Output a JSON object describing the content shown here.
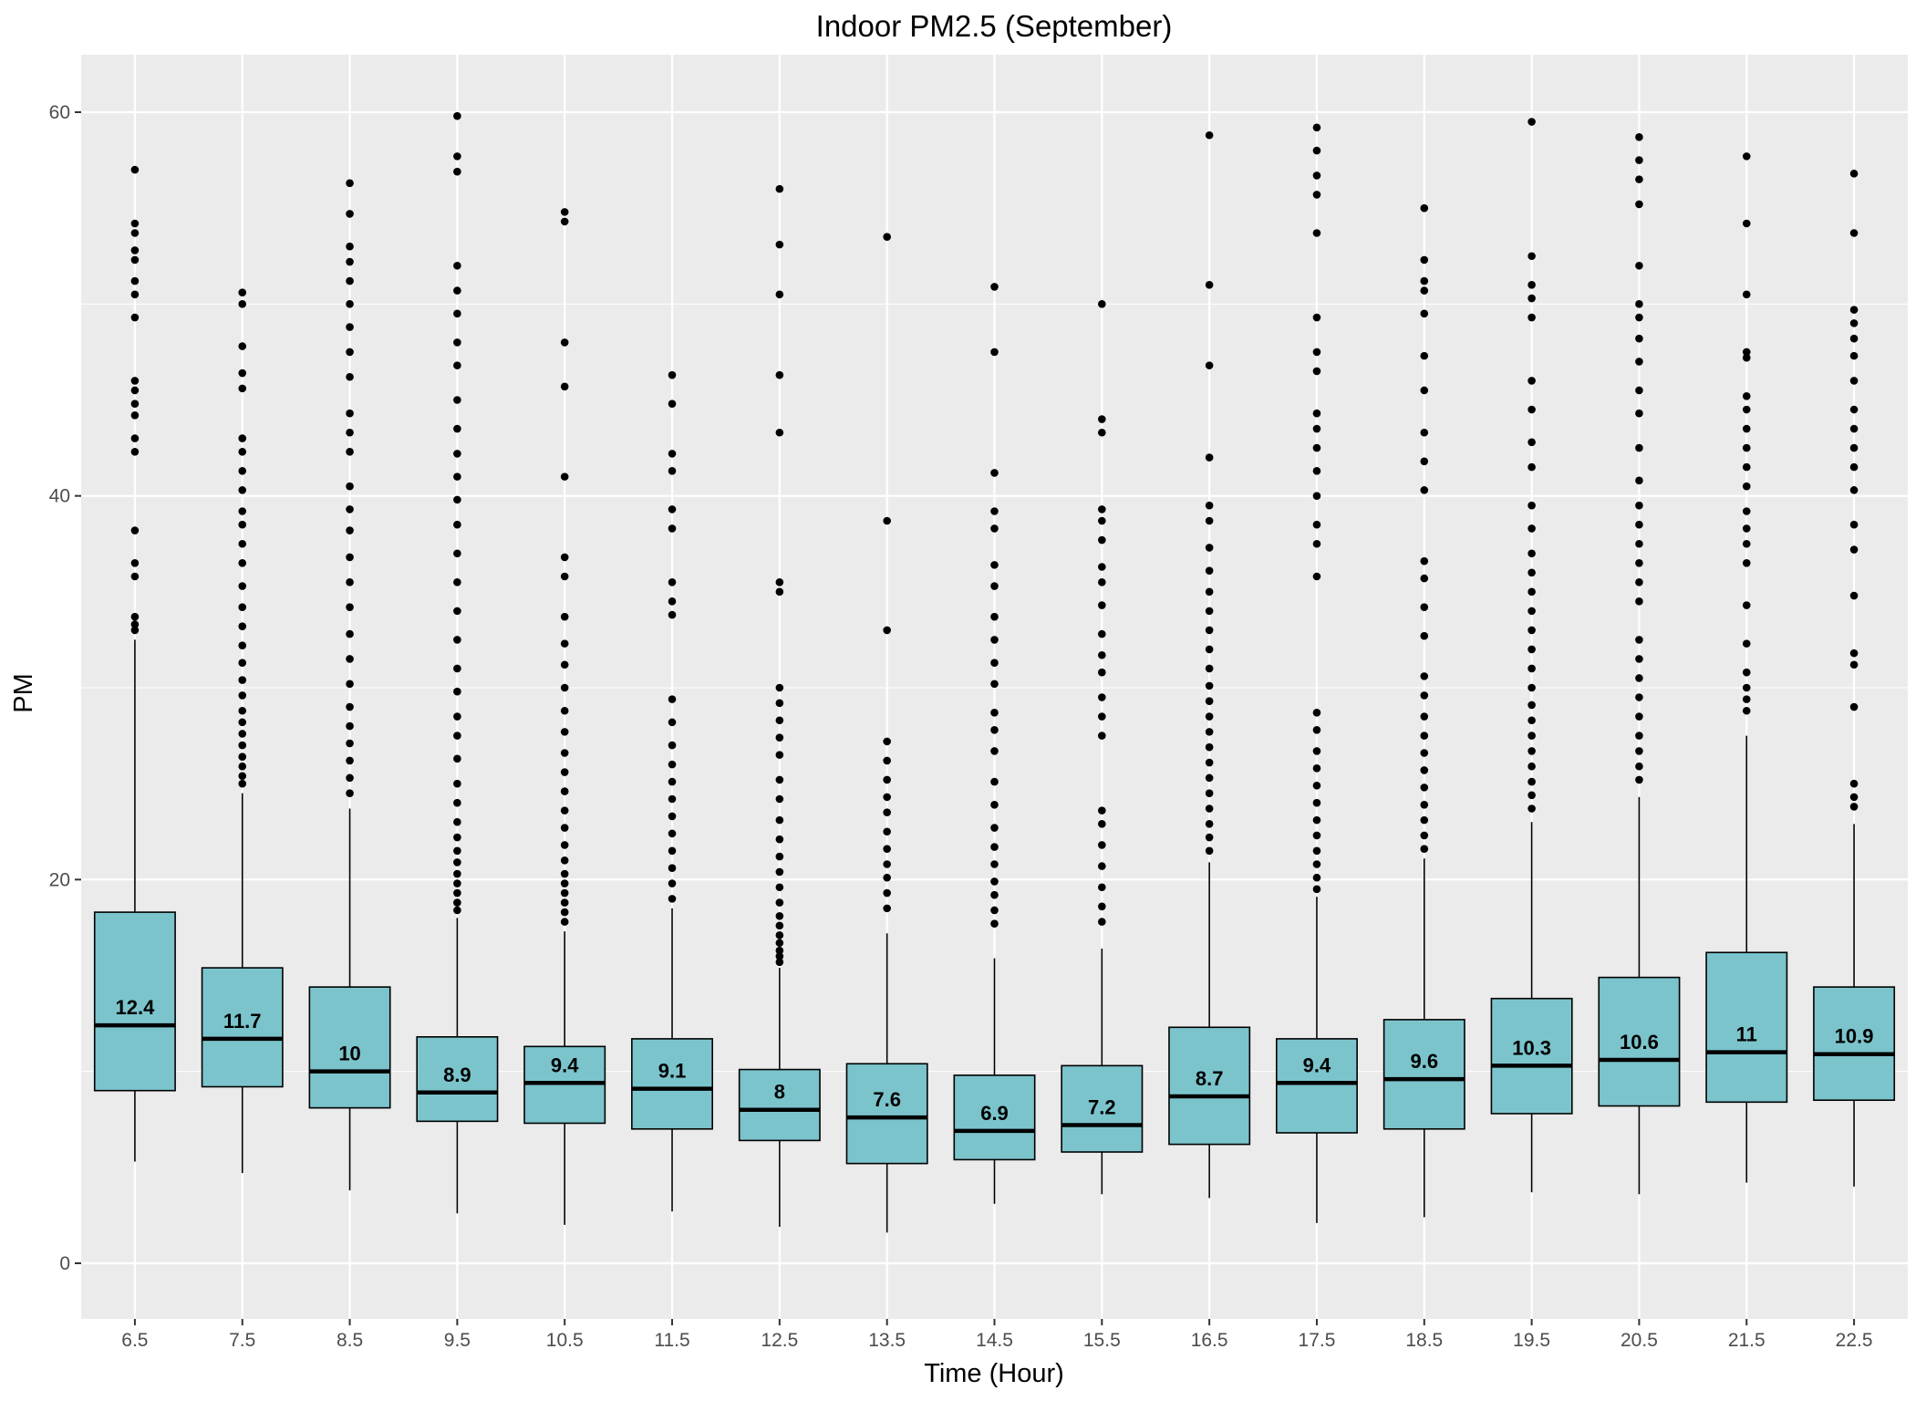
{
  "chart_data": {
    "type": "boxplot",
    "title": "Indoor PM2.5 (September)",
    "xlabel": "Time (Hour)",
    "ylabel": "PM",
    "ylim": [
      -3,
      63
    ],
    "yticks": [
      0,
      20,
      40,
      60
    ],
    "grid": true,
    "legend": "none",
    "categories": [
      "6.5",
      "7.5",
      "8.5",
      "9.5",
      "10.5",
      "11.5",
      "12.5",
      "13.5",
      "14.5",
      "15.5",
      "16.5",
      "17.5",
      "18.5",
      "19.5",
      "20.5",
      "21.5",
      "22.5"
    ],
    "colors": {
      "panel": "#ebebeb",
      "grid": "#ffffff",
      "box_fill": "#7bc4cc",
      "stroke": "#000000"
    },
    "boxes": [
      {
        "category": "6.5",
        "median_label": "12.4",
        "whisker_low": 5.3,
        "q1": 9.0,
        "median": 12.4,
        "q3": 18.3,
        "whisker_high": 32.5,
        "outliers": [
          33.0,
          33.3,
          33.7,
          35.8,
          36.5,
          38.2,
          42.3,
          43.0,
          44.2,
          44.8,
          45.5,
          46.0,
          49.3,
          50.5,
          51.2,
          52.3,
          52.8,
          53.7,
          54.2,
          57.0
        ]
      },
      {
        "category": "7.5",
        "median_label": "11.7",
        "whisker_low": 4.7,
        "q1": 9.2,
        "median": 11.7,
        "q3": 15.4,
        "whisker_high": 24.5,
        "outliers": [
          25.0,
          25.4,
          25.9,
          26.4,
          27.0,
          27.6,
          28.2,
          28.8,
          29.6,
          30.4,
          31.3,
          32.2,
          33.2,
          34.2,
          35.3,
          36.5,
          37.5,
          38.5,
          39.2,
          40.3,
          41.3,
          42.3,
          43.0,
          45.6,
          46.4,
          47.8,
          50.0,
          50.6
        ]
      },
      {
        "category": "8.5",
        "median_label": "10",
        "whisker_low": 3.8,
        "q1": 8.1,
        "median": 10.0,
        "q3": 14.4,
        "whisker_high": 23.7,
        "outliers": [
          24.5,
          25.3,
          26.2,
          27.1,
          28.0,
          29.0,
          30.2,
          31.5,
          32.8,
          34.2,
          35.5,
          36.8,
          38.2,
          39.3,
          40.5,
          42.3,
          43.3,
          44.3,
          46.2,
          47.5,
          48.8,
          50.0,
          51.2,
          52.2,
          53.0,
          54.7,
          56.3
        ]
      },
      {
        "category": "9.5",
        "median_label": "8.9",
        "whisker_low": 2.6,
        "q1": 7.4,
        "median": 8.9,
        "q3": 11.8,
        "whisker_high": 18.0,
        "outliers": [
          18.4,
          18.8,
          19.3,
          19.8,
          20.3,
          20.9,
          21.5,
          22.2,
          23.0,
          24.0,
          25.0,
          26.3,
          27.5,
          28.5,
          29.8,
          31.0,
          32.5,
          34.0,
          35.5,
          37.0,
          38.5,
          39.8,
          41.0,
          42.2,
          43.5,
          45.0,
          46.8,
          48.0,
          49.5,
          50.7,
          52.0,
          56.9,
          57.7,
          59.8
        ]
      },
      {
        "category": "10.5",
        "median_label": "9.4",
        "whisker_low": 2.0,
        "q1": 7.3,
        "median": 9.4,
        "q3": 11.3,
        "whisker_high": 17.3,
        "outliers": [
          17.8,
          18.3,
          18.8,
          19.3,
          19.8,
          20.3,
          21.0,
          21.8,
          22.7,
          23.6,
          24.6,
          25.6,
          26.6,
          27.7,
          28.8,
          30.0,
          31.2,
          32.3,
          33.7,
          35.8,
          36.8,
          41.0,
          45.7,
          48.0,
          54.3,
          54.8
        ]
      },
      {
        "category": "11.5",
        "median_label": "9.1",
        "whisker_low": 2.7,
        "q1": 7.0,
        "median": 9.1,
        "q3": 11.7,
        "whisker_high": 18.5,
        "outliers": [
          19.0,
          19.8,
          20.6,
          21.5,
          22.4,
          23.3,
          24.2,
          25.1,
          26.0,
          27.0,
          28.2,
          29.4,
          33.8,
          34.5,
          35.5,
          38.3,
          39.3,
          41.3,
          42.2,
          44.8,
          46.3
        ]
      },
      {
        "category": "12.5",
        "median_label": "8",
        "whisker_low": 1.9,
        "q1": 6.4,
        "median": 8.0,
        "q3": 10.1,
        "whisker_high": 15.4,
        "outliers": [
          15.7,
          16.0,
          16.3,
          16.7,
          17.1,
          17.6,
          18.1,
          18.8,
          19.6,
          20.4,
          21.2,
          22.1,
          23.1,
          24.2,
          25.2,
          26.5,
          27.4,
          28.3,
          29.2,
          30.0,
          35.0,
          35.5,
          43.3,
          46.3,
          50.5,
          53.1,
          56.0
        ]
      },
      {
        "category": "13.5",
        "median_label": "7.6",
        "whisker_low": 1.6,
        "q1": 5.2,
        "median": 7.6,
        "q3": 10.4,
        "whisker_high": 17.2,
        "outliers": [
          18.5,
          19.3,
          20.1,
          20.8,
          21.6,
          22.5,
          23.5,
          24.3,
          25.2,
          26.2,
          27.2,
          33.0,
          38.7,
          53.5
        ]
      },
      {
        "category": "14.5",
        "median_label": "6.9",
        "whisker_low": 3.1,
        "q1": 5.4,
        "median": 6.9,
        "q3": 9.8,
        "whisker_high": 15.9,
        "outliers": [
          17.7,
          18.4,
          19.2,
          19.9,
          20.8,
          21.7,
          22.7,
          23.9,
          25.1,
          26.7,
          27.8,
          28.7,
          30.2,
          31.3,
          32.5,
          33.7,
          35.3,
          36.4,
          38.3,
          39.2,
          41.2,
          47.5,
          50.9
        ]
      },
      {
        "category": "15.5",
        "median_label": "7.2",
        "whisker_low": 3.6,
        "q1": 5.8,
        "median": 7.2,
        "q3": 10.3,
        "whisker_high": 16.4,
        "outliers": [
          17.8,
          18.6,
          19.6,
          20.7,
          21.8,
          22.9,
          23.6,
          27.5,
          28.5,
          29.5,
          30.8,
          31.7,
          32.8,
          34.3,
          35.5,
          36.3,
          37.7,
          38.7,
          39.3,
          43.3,
          44.0,
          50.0
        ]
      },
      {
        "category": "16.5",
        "median_label": "8.7",
        "whisker_low": 3.4,
        "q1": 6.2,
        "median": 8.7,
        "q3": 12.3,
        "whisker_high": 20.9,
        "outliers": [
          21.5,
          22.2,
          22.9,
          23.7,
          24.5,
          25.3,
          26.1,
          26.9,
          27.7,
          28.5,
          29.3,
          30.1,
          31.0,
          32.0,
          33.0,
          34.0,
          35.0,
          36.1,
          37.3,
          38.7,
          39.5,
          42.0,
          46.8,
          51.0,
          58.8
        ]
      },
      {
        "category": "17.5",
        "median_label": "9.4",
        "whisker_low": 2.1,
        "q1": 6.8,
        "median": 9.4,
        "q3": 11.7,
        "whisker_high": 19.1,
        "outliers": [
          19.5,
          20.1,
          20.8,
          21.5,
          22.3,
          23.1,
          24.0,
          24.9,
          25.8,
          26.7,
          27.8,
          28.7,
          35.8,
          37.5,
          38.5,
          40.0,
          41.3,
          42.5,
          43.5,
          44.3,
          46.5,
          47.5,
          49.3,
          53.7,
          55.7,
          56.7,
          58.0,
          59.2
        ]
      },
      {
        "category": "18.5",
        "median_label": "9.6",
        "whisker_low": 2.4,
        "q1": 7.0,
        "median": 9.6,
        "q3": 12.7,
        "whisker_high": 21.1,
        "outliers": [
          21.6,
          22.3,
          23.1,
          23.9,
          24.8,
          25.7,
          26.6,
          27.5,
          28.5,
          29.6,
          30.6,
          32.7,
          34.2,
          35.7,
          36.6,
          40.3,
          41.8,
          43.3,
          45.5,
          47.3,
          49.5,
          50.7,
          51.2,
          52.3,
          55.0
        ]
      },
      {
        "category": "19.5",
        "median_label": "10.3",
        "whisker_low": 3.7,
        "q1": 7.8,
        "median": 10.3,
        "q3": 13.8,
        "whisker_high": 23.0,
        "outliers": [
          23.7,
          24.4,
          25.1,
          25.9,
          26.7,
          27.5,
          28.3,
          29.1,
          30.0,
          31.0,
          32.0,
          33.0,
          34.0,
          35.0,
          36.0,
          37.0,
          38.3,
          39.5,
          41.5,
          42.8,
          44.5,
          46.0,
          49.3,
          50.3,
          51.0,
          52.5,
          59.5
        ]
      },
      {
        "category": "20.5",
        "median_label": "10.6",
        "whisker_low": 3.6,
        "q1": 8.2,
        "median": 10.6,
        "q3": 14.9,
        "whisker_high": 24.3,
        "outliers": [
          25.2,
          25.9,
          26.7,
          27.5,
          28.5,
          29.5,
          30.5,
          31.5,
          32.5,
          34.5,
          35.5,
          36.5,
          37.5,
          38.5,
          39.5,
          40.8,
          42.5,
          44.3,
          45.5,
          47.0,
          48.2,
          49.3,
          50.0,
          52.0,
          55.2,
          56.5,
          57.5,
          58.7
        ]
      },
      {
        "category": "21.5",
        "median_label": "11",
        "whisker_low": 4.2,
        "q1": 8.4,
        "median": 11.0,
        "q3": 16.2,
        "whisker_high": 27.5,
        "outliers": [
          28.8,
          29.4,
          30.0,
          30.8,
          32.3,
          34.3,
          36.5,
          37.5,
          38.3,
          39.2,
          40.5,
          41.5,
          42.5,
          43.5,
          44.5,
          45.2,
          47.2,
          47.5,
          50.5,
          54.2,
          57.7
        ]
      },
      {
        "category": "22.5",
        "median_label": "10.9",
        "whisker_low": 4.0,
        "q1": 8.5,
        "median": 10.9,
        "q3": 14.4,
        "whisker_high": 22.9,
        "outliers": [
          23.8,
          24.3,
          25.0,
          29.0,
          31.2,
          31.8,
          34.8,
          37.2,
          38.5,
          40.3,
          41.5,
          42.5,
          43.5,
          44.5,
          46.0,
          47.3,
          48.2,
          49.0,
          49.7,
          53.7,
          56.8
        ]
      }
    ]
  }
}
